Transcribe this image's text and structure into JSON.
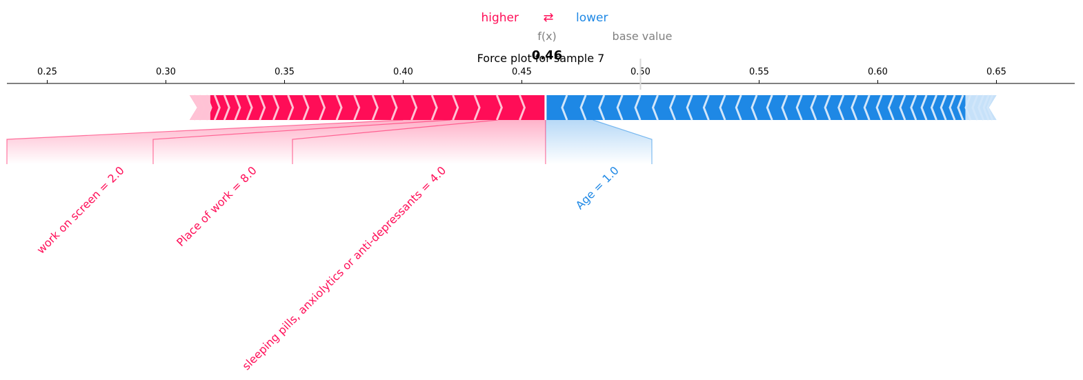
{
  "legend": {
    "higher": "higher",
    "lower": "lower",
    "arrows": "⇄",
    "higher_color": "#ff0d57",
    "lower_color": "#1e88e5"
  },
  "labels": {
    "fx": "f(x)",
    "base_value": "base value",
    "fx_value": "0.46"
  },
  "chart_data": {
    "type": "force",
    "title": "Force plot for sample 7",
    "xlim": [
      0.233,
      0.683
    ],
    "xticks": [
      0.25,
      0.3,
      0.35,
      0.4,
      0.45,
      0.5,
      0.55,
      0.6,
      0.65
    ],
    "tick_labels": [
      "0.25",
      "0.30",
      "0.35",
      "0.40",
      "0.45",
      "0.50",
      "0.55",
      "0.60",
      "0.65"
    ],
    "fx": 0.46,
    "base_value": 0.5,
    "positive_range": [
      0.31,
      0.46
    ],
    "negative_range": [
      0.46,
      0.65
    ],
    "colors": {
      "positive": "#ff0d57",
      "negative": "#1e88e5"
    },
    "positive_features": [
      {
        "label": "sleeping pills, anxiolytics or anti-depressants = 4.0",
        "start": 0.46,
        "end": 0.44
      },
      {
        "label": "Place of work = 8.0",
        "start": 0.44,
        "end": 0.42
      },
      {
        "label": "work on screen = 2.0",
        "start": 0.42,
        "end": 0.4
      }
    ],
    "negative_features": [
      {
        "label": "Age = 1.0",
        "start": 0.46,
        "end": 0.48
      }
    ]
  }
}
